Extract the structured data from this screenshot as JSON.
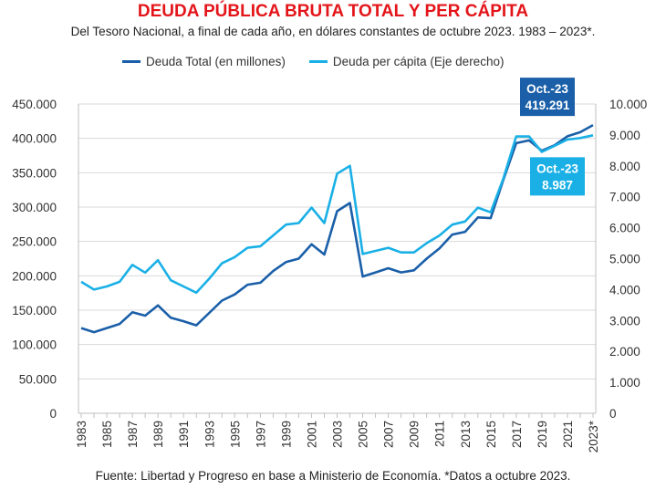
{
  "colors": {
    "title": "#e3151a",
    "total": "#1a5fa8",
    "percapita": "#1ab0e6"
  },
  "chart_data": {
    "type": "line",
    "title": "DEUDA PÚBLICA BRUTA TOTAL Y PER CÁPITA",
    "subtitle": "Del Tesoro Nacional, a final de cada año, en dólares constantes de octubre 2023. 1983 – 2023*.",
    "x": [
      1983,
      1984,
      1985,
      1986,
      1987,
      1988,
      1989,
      1990,
      1991,
      1992,
      1993,
      1994,
      1995,
      1996,
      1997,
      1998,
      1999,
      2000,
      2001,
      2002,
      2003,
      2004,
      2005,
      2006,
      2007,
      2008,
      2009,
      2010,
      2011,
      2012,
      2013,
      2014,
      2015,
      2016,
      2017,
      2018,
      2019,
      2020,
      2021,
      2022,
      2023
    ],
    "x_tick_labels": [
      "1983",
      "1985",
      "1987",
      "1989",
      "1991",
      "1993",
      "1995",
      "1997",
      "1999",
      "2001",
      "2003",
      "2005",
      "2007",
      "2009",
      "2011",
      "2013",
      "2015",
      "2017",
      "2019",
      "2021",
      "2023*"
    ],
    "series": [
      {
        "name": "Deuda Total (en millones)",
        "axis": "left",
        "values": [
          124000,
          118000,
          124000,
          130000,
          147000,
          142000,
          157000,
          139000,
          134000,
          128000,
          146000,
          164000,
          173000,
          187000,
          190000,
          207000,
          220000,
          225000,
          246000,
          231000,
          294000,
          306000,
          199000,
          205000,
          211000,
          205000,
          208000,
          225000,
          240000,
          260000,
          264000,
          285000,
          284000,
          340000,
          393000,
          397000,
          382000,
          390000,
          403000,
          409000,
          419291
        ]
      },
      {
        "name": "Deuda per cápita (Eje derecho)",
        "axis": "right",
        "values": [
          4250,
          4000,
          4100,
          4250,
          4800,
          4550,
          4950,
          4300,
          4100,
          3900,
          4350,
          4850,
          5050,
          5350,
          5400,
          5750,
          6100,
          6150,
          6650,
          6150,
          7750,
          8000,
          5150,
          5250,
          5350,
          5200,
          5200,
          5500,
          5750,
          6100,
          6200,
          6650,
          6500,
          7600,
          8950,
          8950,
          8450,
          8650,
          8850,
          8900,
          8987
        ]
      }
    ],
    "ylim_left": [
      0,
      450000
    ],
    "ylim_right": [
      0,
      10000
    ],
    "yticks_left": [
      "0",
      "50.000",
      "100.000",
      "150.000",
      "200.000",
      "250.000",
      "300.000",
      "350.000",
      "400.000",
      "450.000"
    ],
    "yticks_right": [
      "0",
      "1.000",
      "2.000",
      "3.000",
      "4.000",
      "5.000",
      "6.000",
      "7.000",
      "8.000",
      "9.000",
      "10.000"
    ],
    "annotations": [
      {
        "series": 0,
        "line1": "Oct.-23",
        "line2": "419.291"
      },
      {
        "series": 1,
        "line1": "Oct.-23",
        "line2": "8.987"
      }
    ],
    "grid": true
  },
  "source_note": "Fuente: Libertad y Progreso en base a Ministerio de Economía. *Datos a octubre 2023."
}
